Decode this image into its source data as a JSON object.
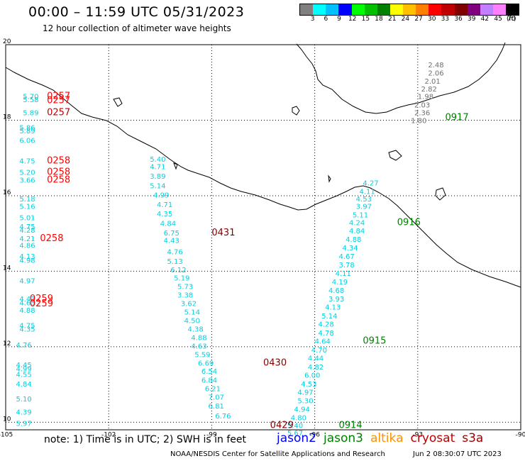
{
  "header": {
    "title": "00:00 – 11:59 UTC 05/31/2023",
    "subtitle": "12 hour collection of altimeter wave heights"
  },
  "scale": {
    "colors": [
      "#808080",
      "#00ffff",
      "#00c0ff",
      "#0000ff",
      "#00ff00",
      "#00c000",
      "#008000",
      "#ffff00",
      "#ffc000",
      "#ff8000",
      "#ff0000",
      "#c00000",
      "#800000",
      "#800080",
      "#c080ff",
      "#ff80ff",
      "#000000"
    ],
    "labels": [
      "3",
      "6",
      "9",
      "12",
      "15",
      "18",
      "21",
      "24",
      "27",
      "30",
      "33",
      "36",
      "39",
      "42",
      "45",
      "70"
    ],
    "unit": "(ft)"
  },
  "axes": {
    "lon_ticks": [
      "-105",
      "-102",
      "-99",
      "-96",
      "-93",
      "-90"
    ],
    "lat_ticks": [
      "20",
      "18",
      "16",
      "14",
      "12",
      "10"
    ]
  },
  "observations": {
    "cyan": [
      {
        "lon": -104.5,
        "lat": 18.56,
        "v": "5.70"
      },
      {
        "lon": -104.5,
        "lat": 18.48,
        "v": "5.58"
      },
      {
        "lon": -104.5,
        "lat": 18.13,
        "v": "5.89"
      },
      {
        "lon": -104.6,
        "lat": 17.74,
        "v": "5.86"
      },
      {
        "lon": -104.6,
        "lat": 17.65,
        "v": "5.89"
      },
      {
        "lon": -104.6,
        "lat": 17.4,
        "v": "6.06"
      },
      {
        "lon": -104.6,
        "lat": 16.85,
        "v": "4.75"
      },
      {
        "lon": -104.6,
        "lat": 16.55,
        "v": "5.20"
      },
      {
        "lon": -104.6,
        "lat": 16.35,
        "v": "3.66"
      },
      {
        "lon": -104.6,
        "lat": 15.85,
        "v": "5.18"
      },
      {
        "lon": -104.6,
        "lat": 15.65,
        "v": "5.16"
      },
      {
        "lon": -104.6,
        "lat": 15.35,
        "v": "5.01"
      },
      {
        "lon": -104.6,
        "lat": 15.12,
        "v": "4.75"
      },
      {
        "lon": -104.6,
        "lat": 15.02,
        "v": "4.28"
      },
      {
        "lon": -104.6,
        "lat": 14.8,
        "v": "4.21"
      },
      {
        "lon": -104.6,
        "lat": 14.62,
        "v": "4.86"
      },
      {
        "lon": -104.6,
        "lat": 14.33,
        "v": "4.13"
      },
      {
        "lon": -104.6,
        "lat": 14.22,
        "v": "4.98"
      },
      {
        "lon": -104.6,
        "lat": 13.68,
        "v": "4.97"
      },
      {
        "lon": -104.6,
        "lat": 13.2,
        "v": "4.43"
      },
      {
        "lon": -104.6,
        "lat": 13.1,
        "v": "4.63"
      },
      {
        "lon": -104.6,
        "lat": 12.9,
        "v": "4.88"
      },
      {
        "lon": -104.6,
        "lat": 12.5,
        "v": "4.75"
      },
      {
        "lon": -104.6,
        "lat": 12.4,
        "v": "4.35"
      },
      {
        "lon": -104.7,
        "lat": 11.98,
        "v": "4.76"
      },
      {
        "lon": -104.7,
        "lat": 11.45,
        "v": "4.45"
      },
      {
        "lon": -104.7,
        "lat": 11.35,
        "v": "4.99"
      },
      {
        "lon": -104.7,
        "lat": 11.2,
        "v": "4.55"
      },
      {
        "lon": -104.7,
        "lat": 10.95,
        "v": "4.84"
      },
      {
        "lon": -104.7,
        "lat": 10.55,
        "v": "5.10"
      },
      {
        "lon": -104.7,
        "lat": 10.2,
        "v": "4.39"
      },
      {
        "lon": -104.7,
        "lat": 9.9,
        "v": "5.97"
      },
      {
        "lon": -100.8,
        "lat": 16.9,
        "v": "5.40"
      },
      {
        "lon": -100.8,
        "lat": 16.7,
        "v": "4.71"
      },
      {
        "lon": -100.8,
        "lat": 16.45,
        "v": "3.89"
      },
      {
        "lon": -100.8,
        "lat": 16.2,
        "v": "5.14"
      },
      {
        "lon": -100.7,
        "lat": 15.95,
        "v": "4.99"
      },
      {
        "lon": -100.6,
        "lat": 15.7,
        "v": "4.71"
      },
      {
        "lon": -100.6,
        "lat": 15.45,
        "v": "4.35"
      },
      {
        "lon": -100.5,
        "lat": 15.2,
        "v": "4.84"
      },
      {
        "lon": -100.4,
        "lat": 14.95,
        "v": "6.75"
      },
      {
        "lon": -100.4,
        "lat": 14.75,
        "v": "4.43"
      },
      {
        "lon": -100.3,
        "lat": 14.45,
        "v": "4.76"
      },
      {
        "lon": -100.3,
        "lat": 14.2,
        "v": "5.13"
      },
      {
        "lon": -100.2,
        "lat": 13.97,
        "v": "6.12"
      },
      {
        "lon": -100.1,
        "lat": 13.75,
        "v": "5.19"
      },
      {
        "lon": -100.0,
        "lat": 13.53,
        "v": "5.73"
      },
      {
        "lon": -100.0,
        "lat": 13.3,
        "v": "3.38"
      },
      {
        "lon": -99.9,
        "lat": 13.08,
        "v": "3.62"
      },
      {
        "lon": -99.8,
        "lat": 12.85,
        "v": "5.14"
      },
      {
        "lon": -99.8,
        "lat": 12.63,
        "v": "4.50"
      },
      {
        "lon": -99.7,
        "lat": 12.4,
        "v": "4.38"
      },
      {
        "lon": -99.6,
        "lat": 12.18,
        "v": "4.88"
      },
      {
        "lon": -99.6,
        "lat": 11.95,
        "v": "4.63"
      },
      {
        "lon": -99.5,
        "lat": 11.73,
        "v": "5.59"
      },
      {
        "lon": -99.4,
        "lat": 11.5,
        "v": "6.69"
      },
      {
        "lon": -99.3,
        "lat": 11.28,
        "v": "6.54"
      },
      {
        "lon": -99.3,
        "lat": 11.05,
        "v": "6.84"
      },
      {
        "lon": -99.2,
        "lat": 10.82,
        "v": "6.21"
      },
      {
        "lon": -99.1,
        "lat": 10.6,
        "v": "7.07"
      },
      {
        "lon": -99.1,
        "lat": 10.36,
        "v": "6.81"
      },
      {
        "lon": -98.9,
        "lat": 10.1,
        "v": "6.76"
      },
      {
        "lon": -94.6,
        "lat": 16.27,
        "v": "4.27"
      },
      {
        "lon": -94.7,
        "lat": 16.05,
        "v": "4.11"
      },
      {
        "lon": -94.8,
        "lat": 15.85,
        "v": "4.53"
      },
      {
        "lon": -94.8,
        "lat": 15.65,
        "v": "3.97"
      },
      {
        "lon": -94.9,
        "lat": 15.43,
        "v": "5.11"
      },
      {
        "lon": -95.0,
        "lat": 15.22,
        "v": "4.24"
      },
      {
        "lon": -95.0,
        "lat": 15.0,
        "v": "4.84"
      },
      {
        "lon": -95.1,
        "lat": 14.78,
        "v": "4.88"
      },
      {
        "lon": -95.2,
        "lat": 14.55,
        "v": "4.34"
      },
      {
        "lon": -95.3,
        "lat": 14.33,
        "v": "4.67"
      },
      {
        "lon": -95.3,
        "lat": 14.1,
        "v": "3.78"
      },
      {
        "lon": -95.4,
        "lat": 13.88,
        "v": "4.11"
      },
      {
        "lon": -95.5,
        "lat": 13.65,
        "v": "4.19"
      },
      {
        "lon": -95.6,
        "lat": 13.43,
        "v": "4.68"
      },
      {
        "lon": -95.6,
        "lat": 13.2,
        "v": "3.93"
      },
      {
        "lon": -95.7,
        "lat": 12.98,
        "v": "4.13"
      },
      {
        "lon": -95.8,
        "lat": 12.75,
        "v": "5.14"
      },
      {
        "lon": -95.9,
        "lat": 12.53,
        "v": "4.28"
      },
      {
        "lon": -95.9,
        "lat": 12.3,
        "v": "4.78"
      },
      {
        "lon": -96.0,
        "lat": 12.08,
        "v": "4.64"
      },
      {
        "lon": -96.1,
        "lat": 11.85,
        "v": "4.70"
      },
      {
        "lon": -96.2,
        "lat": 11.63,
        "v": "4.44"
      },
      {
        "lon": -96.2,
        "lat": 11.4,
        "v": "4.82"
      },
      {
        "lon": -96.3,
        "lat": 11.18,
        "v": "6.00"
      },
      {
        "lon": -96.4,
        "lat": 10.95,
        "v": "4.53"
      },
      {
        "lon": -96.5,
        "lat": 10.73,
        "v": "4.97"
      },
      {
        "lon": -96.5,
        "lat": 10.5,
        "v": "5.30"
      },
      {
        "lon": -96.6,
        "lat": 10.28,
        "v": "4.94"
      },
      {
        "lon": -96.7,
        "lat": 10.05,
        "v": "4.80"
      },
      {
        "lon": -96.8,
        "lat": 9.85,
        "v": "5.40"
      },
      {
        "lon": -96.8,
        "lat": 9.65,
        "v": "5.67"
      }
    ],
    "gray": [
      {
        "lon": -92.7,
        "lat": 19.4,
        "v": "2.48"
      },
      {
        "lon": -92.7,
        "lat": 19.18,
        "v": "2.06"
      },
      {
        "lon": -92.8,
        "lat": 18.97,
        "v": "2.01"
      },
      {
        "lon": -92.9,
        "lat": 18.76,
        "v": "2.82"
      },
      {
        "lon": -93.0,
        "lat": 18.56,
        "v": "1.98"
      },
      {
        "lon": -93.1,
        "lat": 18.34,
        "v": "2.03"
      },
      {
        "lon": -93.1,
        "lat": 18.13,
        "v": "2.36"
      },
      {
        "lon": -93.2,
        "lat": 17.92,
        "v": "1.80"
      }
    ]
  },
  "time_labels": [
    {
      "lon": -103.8,
      "lat": 18.56,
      "v": "0257",
      "color": "#ff0000"
    },
    {
      "lon": -103.8,
      "lat": 18.45,
      "v": "0257",
      "color": "#ff0000"
    },
    {
      "lon": -103.8,
      "lat": 18.13,
      "v": "0257",
      "color": "#c00000"
    },
    {
      "lon": -103.8,
      "lat": 16.85,
      "v": "0258",
      "color": "#ff0000"
    },
    {
      "lon": -103.8,
      "lat": 16.55,
      "v": "0258",
      "color": "#ff0000"
    },
    {
      "lon": -103.8,
      "lat": 16.35,
      "v": "0258",
      "color": "#ff0000"
    },
    {
      "lon": -104.0,
      "lat": 14.8,
      "v": "0258",
      "color": "#ff0000"
    },
    {
      "lon": -104.3,
      "lat": 13.2,
      "v": "0259",
      "color": "#ff0000"
    },
    {
      "lon": -104.3,
      "lat": 13.07,
      "v": "0259",
      "color": "#ff0000"
    },
    {
      "lon": -99.0,
      "lat": 14.95,
      "v": "0431",
      "color": "#800000"
    },
    {
      "lon": -97.5,
      "lat": 11.5,
      "v": "0430",
      "color": "#800000"
    },
    {
      "lon": -97.3,
      "lat": 9.85,
      "v": "0429",
      "color": "#800000"
    },
    {
      "lon": -93.6,
      "lat": 15.22,
      "v": "0916",
      "color": "#008000"
    },
    {
      "lon": -94.6,
      "lat": 12.08,
      "v": "0915",
      "color": "#008000"
    },
    {
      "lon": -95.3,
      "lat": 9.85,
      "v": "0914",
      "color": "#008000"
    },
    {
      "lon": -92.2,
      "lat": 18.0,
      "v": "0917",
      "color": "#008000"
    }
  ],
  "footer": {
    "note": "note:  1) Time is in UTC;  2) SWH is in feet",
    "satellites": [
      {
        "name": "jason2",
        "color": "#0000ff"
      },
      {
        "name": "jason3",
        "color": "#008000"
      },
      {
        "name": "altika",
        "color": "#ff9000"
      },
      {
        "name": "cryosat",
        "color": "#c00000"
      },
      {
        "name": "s3a",
        "color": "#a00000"
      }
    ],
    "credit": "NOAA/NESDIS Center for Satellite Applications and Research",
    "timestamp": "Jun  2 08:30:07 UTC 2023"
  }
}
